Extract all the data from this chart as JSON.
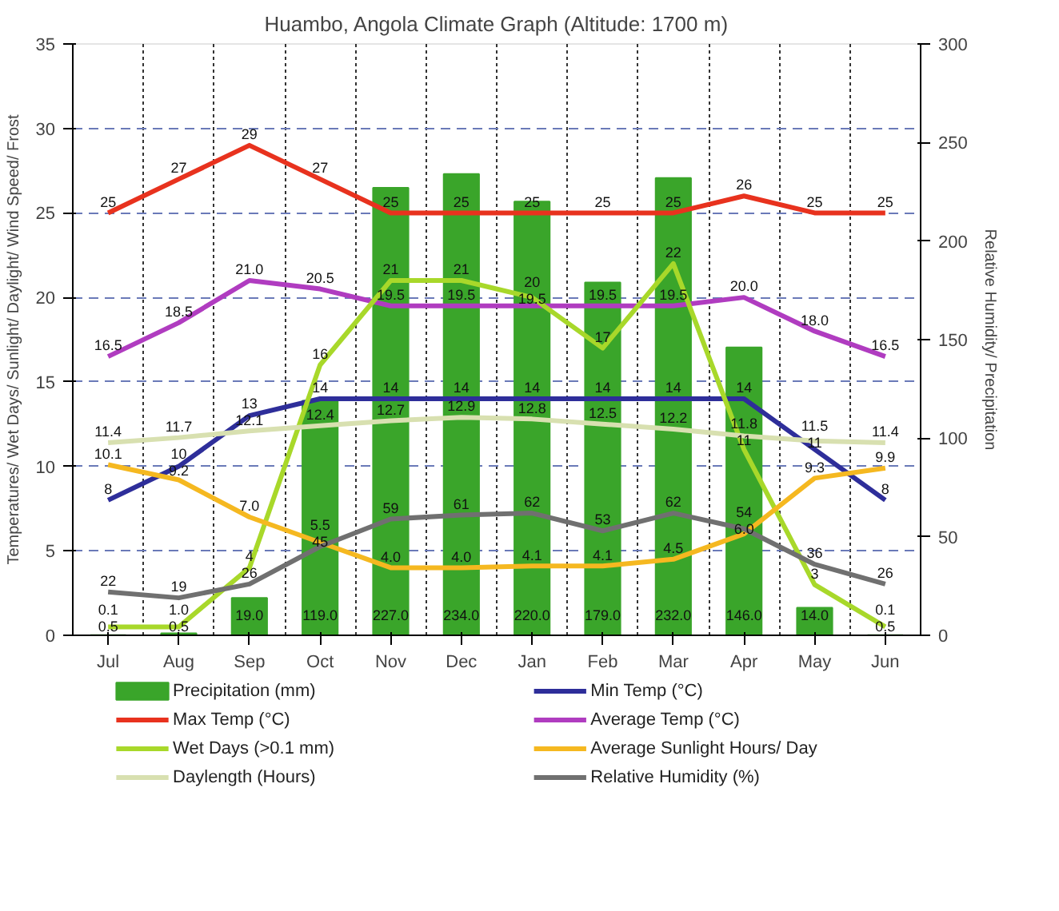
{
  "chart_data": {
    "type": "line",
    "title": "Huambo, Angola Climate Graph (Altitude: 1700 m)",
    "ylabel": "Temperatures/ Wet Days/ Sunlight/ Daylight/ Wind Speed/ Frost",
    "y2label": "Relative Humidity/ Precipitation",
    "categories": [
      "Jul",
      "Aug",
      "Sep",
      "Oct",
      "Nov",
      "Dec",
      "Jan",
      "Feb",
      "Mar",
      "Apr",
      "May",
      "Jun"
    ],
    "ylim": [
      0,
      35
    ],
    "yticks": [
      0,
      5,
      10,
      15,
      20,
      25,
      30,
      35
    ],
    "y2lim": [
      0,
      300
    ],
    "y2ticks": [
      0,
      50,
      100,
      150,
      200,
      250,
      300
    ],
    "grid": true,
    "legend": "bottom",
    "series": [
      {
        "name": "Precipitation (mm)",
        "type": "bar",
        "axis": "y2",
        "color": "#3aa52a",
        "values": [
          0.1,
          1.0,
          19.0,
          119.0,
          227.0,
          234.0,
          220.0,
          179.0,
          232.0,
          146.0,
          14.0,
          0.1
        ],
        "value_labels": [
          "0.1",
          "1.0",
          "19.0",
          "119.0",
          "227.0",
          "234.0",
          "220.0",
          "179.0",
          "232.0",
          "146.0",
          "14.0",
          "0.1"
        ]
      },
      {
        "name": "Min Temp (°C)",
        "color": "#2e2e9a",
        "values": [
          8,
          10,
          13,
          14,
          14,
          14,
          14,
          14,
          14,
          14,
          11,
          8
        ],
        "value_labels": [
          "8",
          "10",
          "13",
          "14",
          "14",
          "14",
          "14",
          "14",
          "14",
          "14",
          "11",
          "8"
        ]
      },
      {
        "name": "Max Temp (°C)",
        "color": "#e8321e",
        "values": [
          25,
          27,
          29,
          27,
          25,
          25,
          25,
          25,
          25,
          26,
          25,
          25
        ],
        "value_labels": [
          "25",
          "27",
          "29",
          "27",
          "25",
          "25",
          "25",
          "25",
          "25",
          "26",
          "25",
          "25"
        ]
      },
      {
        "name": "Average Temp (°C)",
        "color": "#b03cc0",
        "values": [
          16.5,
          18.5,
          21.0,
          20.5,
          19.5,
          19.5,
          19.5,
          19.5,
          19.5,
          20.0,
          18.0,
          16.5
        ],
        "value_labels": [
          "16.5",
          "18.5",
          "21.0",
          "20.5",
          "19.5",
          "19.5",
          "19.5",
          "19.5",
          "19.5",
          "20.0",
          "18.0",
          "16.5"
        ]
      },
      {
        "name": "Wet Days (>0.1 mm)",
        "color": "#a8d82a",
        "values": [
          0.5,
          0.5,
          4,
          16,
          21,
          21,
          20,
          17,
          22,
          11,
          3,
          0.5
        ],
        "value_labels": [
          "0.5",
          "0.5",
          "4",
          "16",
          "21",
          "21",
          "20",
          "17",
          "22",
          "11",
          "3",
          "0.5"
        ]
      },
      {
        "name": "Average Sunlight Hours/ Day",
        "color": "#f5b820",
        "values": [
          10.1,
          9.2,
          7.0,
          5.5,
          4.0,
          4.0,
          4.1,
          4.1,
          4.5,
          6.0,
          9.3,
          9.9
        ],
        "value_labels": [
          "10.1",
          "9.2",
          "7.0",
          "5.5",
          "4.0",
          "4.0",
          "4.1",
          "4.1",
          "4.5",
          "6.0",
          "9.3",
          "9.9"
        ]
      },
      {
        "name": "Daylength (Hours)",
        "color": "#d8e0b0",
        "values": [
          11.4,
          11.7,
          12.1,
          12.4,
          12.7,
          12.9,
          12.8,
          12.5,
          12.2,
          11.8,
          11.5,
          11.4
        ],
        "value_labels": [
          "11.4",
          "11.7",
          "12.1",
          "12.4",
          "12.7",
          "12.9",
          "12.8",
          "12.5",
          "12.2",
          "11.8",
          "11.5",
          "11.4"
        ]
      },
      {
        "name": "Relative Humidity (%)",
        "axis": "y2",
        "color": "#707070",
        "values": [
          22,
          19,
          26,
          45,
          59,
          61,
          62,
          53,
          62,
          54,
          36,
          26
        ],
        "value_labels": [
          "22",
          "19",
          "26",
          "45",
          "59",
          "61",
          "62",
          "53",
          "62",
          "54",
          "36",
          "26"
        ]
      }
    ]
  }
}
